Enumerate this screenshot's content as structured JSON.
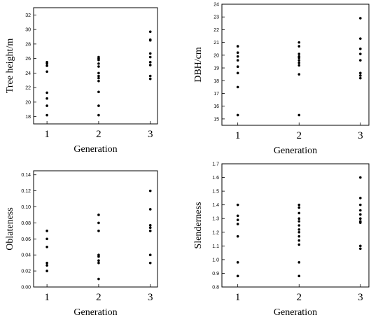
{
  "chart_data": [
    {
      "type": "scatter",
      "ylabel": "Tree height/m",
      "xlabel": "Generation",
      "categories": [
        "1",
        "2",
        "3"
      ],
      "ylim": [
        17,
        33
      ],
      "yticks": [
        18,
        20,
        22,
        24,
        26,
        28,
        30,
        32
      ],
      "grid": false,
      "points": [
        {
          "x": "1",
          "y": [
            25.5,
            25.3,
            25.0,
            24.2,
            21.3,
            20.5,
            19.5,
            18.2
          ]
        },
        {
          "x": "2",
          "y": [
            26.2,
            26.0,
            25.8,
            25.3,
            24.9,
            24.0,
            23.6,
            23.3,
            22.9,
            21.4,
            19.5,
            18.2
          ]
        },
        {
          "x": "3",
          "y": [
            29.7,
            28.6,
            28.5,
            26.7,
            26.2,
            25.5,
            25.1,
            23.6,
            23.2
          ]
        }
      ]
    },
    {
      "type": "scatter",
      "ylabel": "DBH/cm",
      "xlabel": "Generation",
      "categories": [
        "1",
        "2",
        "3"
      ],
      "ylim": [
        14.5,
        24
      ],
      "yticks": [
        15,
        16,
        17,
        18,
        19,
        20,
        21,
        22,
        23,
        24
      ],
      "grid": false,
      "points": [
        {
          "x": "1",
          "y": [
            20.7,
            20.2,
            19.9,
            19.6,
            19.1,
            18.6,
            17.5,
            15.3
          ]
        },
        {
          "x": "2",
          "y": [
            21.0,
            20.7,
            20.1,
            19.9,
            19.8,
            19.6,
            19.4,
            19.2,
            18.5,
            15.3
          ]
        },
        {
          "x": "3",
          "y": [
            22.9,
            21.3,
            20.5,
            20.1,
            19.6,
            18.6,
            18.4,
            18.2
          ]
        }
      ]
    },
    {
      "type": "scatter",
      "ylabel": "Oblateness",
      "xlabel": "Generation",
      "categories": [
        "1",
        "2",
        "3"
      ],
      "ylim": [
        0,
        0.145
      ],
      "yticks": [
        "0.00",
        "0.02",
        "0.04",
        "0.06",
        "0.08",
        "0.10",
        "0.12",
        "0.14"
      ],
      "grid": false,
      "points": [
        {
          "x": "1",
          "y": [
            0.07,
            0.06,
            0.05,
            0.03,
            0.027,
            0.02
          ]
        },
        {
          "x": "2",
          "y": [
            0.09,
            0.08,
            0.07,
            0.04,
            0.038,
            0.033,
            0.03,
            0.01
          ]
        },
        {
          "x": "3",
          "y": [
            0.12,
            0.097,
            0.077,
            0.074,
            0.07,
            0.04,
            0.03
          ]
        }
      ]
    },
    {
      "type": "scatter",
      "ylabel": "Slenderness",
      "xlabel": "Generation",
      "categories": [
        "1",
        "2",
        "3"
      ],
      "ylim": [
        0.8,
        1.7
      ],
      "yticks": [
        "0.8",
        "0.9",
        "1.0",
        "1.1",
        "1.2",
        "1.3",
        "1.4",
        "1.5",
        "1.6",
        "1.7"
      ],
      "grid": false,
      "points": [
        {
          "x": "1",
          "y": [
            1.4,
            1.32,
            1.29,
            1.26,
            1.17,
            0.98,
            0.88
          ]
        },
        {
          "x": "2",
          "y": [
            1.4,
            1.38,
            1.34,
            1.3,
            1.28,
            1.25,
            1.22,
            1.2,
            1.17,
            1.14,
            1.11,
            0.98,
            0.88
          ]
        },
        {
          "x": "3",
          "y": [
            1.6,
            1.45,
            1.4,
            1.36,
            1.33,
            1.3,
            1.28,
            1.27,
            1.1,
            1.08
          ]
        }
      ]
    }
  ]
}
